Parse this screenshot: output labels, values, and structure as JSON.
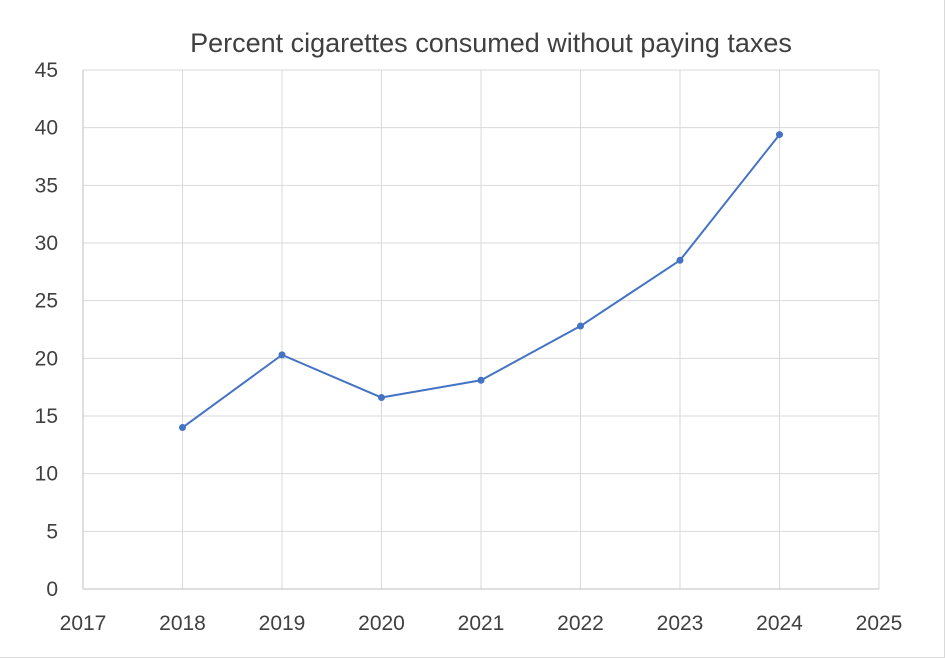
{
  "chart_data": {
    "type": "scatter",
    "mode": "lines+markers",
    "title": "Percent cigarettes consumed without paying taxes",
    "xlabel": "",
    "ylabel": "",
    "x": [
      2018,
      2019,
      2020,
      2021,
      2022,
      2023,
      2024
    ],
    "series": [
      {
        "values": [
          14.0,
          20.3,
          16.6,
          18.1,
          22.8,
          28.5,
          39.4
        ]
      }
    ],
    "xlim": [
      2017,
      2025
    ],
    "ylim": [
      0,
      45
    ],
    "xticks": [
      "2017",
      "2018",
      "2019",
      "2020",
      "2021",
      "2022",
      "2023",
      "2024",
      "2025"
    ],
    "yticks": [
      "0",
      "5",
      "10",
      "15",
      "20",
      "25",
      "30",
      "35",
      "40",
      "45"
    ],
    "grid": true,
    "legend": "none",
    "colors": {
      "series": "#4472c4",
      "grid": "#d9d9d9",
      "text": "#404040"
    }
  }
}
